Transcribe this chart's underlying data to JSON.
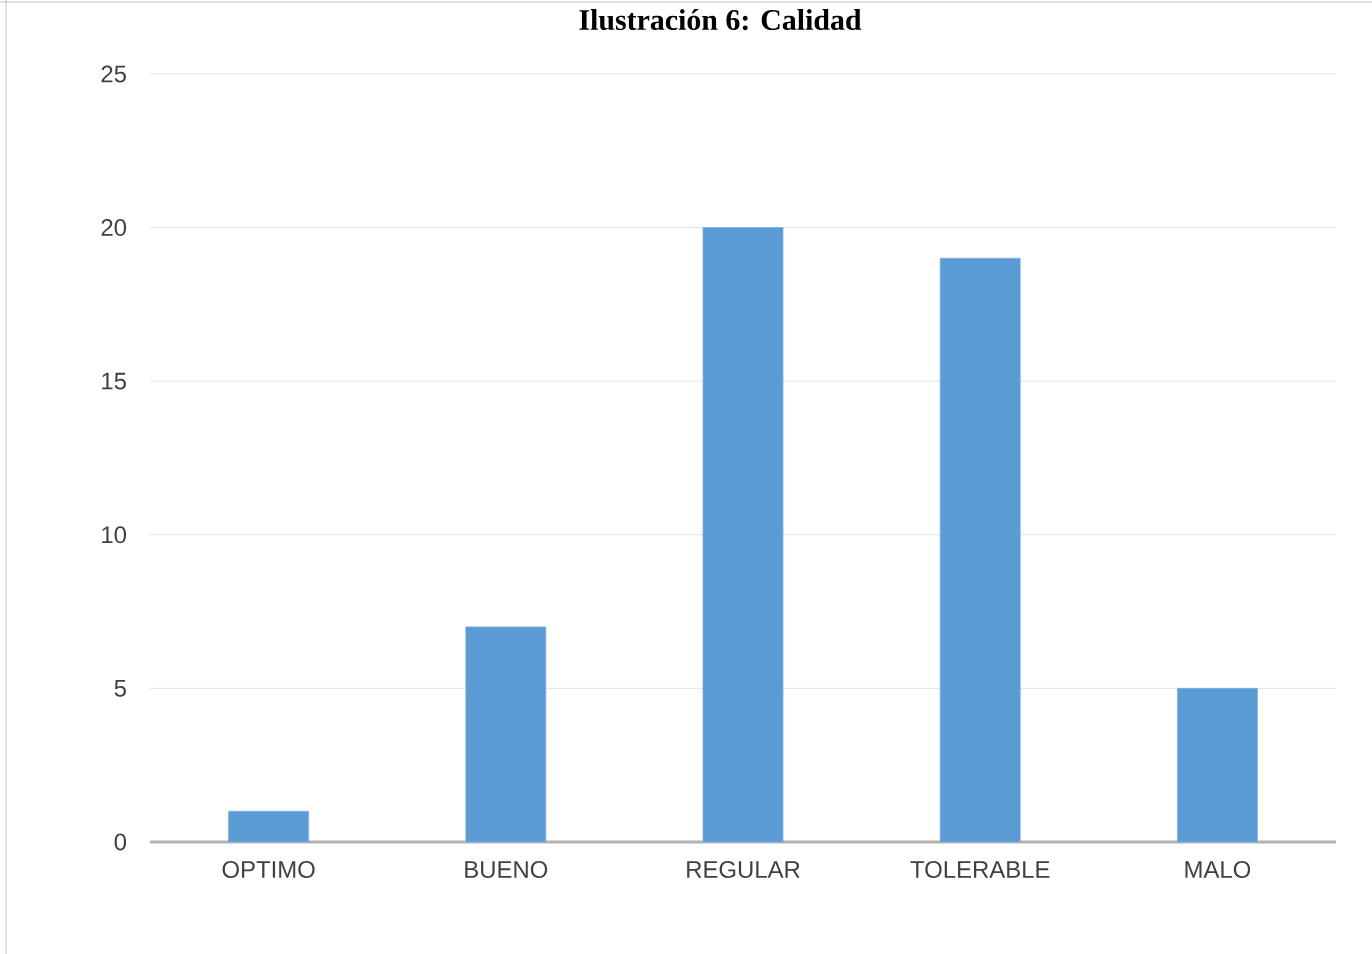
{
  "chart_data": {
    "type": "bar",
    "title": "Ilustración 6: Calidad",
    "categories": [
      "OPTIMO",
      "BUENO",
      "REGULAR",
      "TOLERABLE",
      "MALO"
    ],
    "values": [
      1,
      7,
      20,
      19,
      5
    ],
    "color": "#5b9bd5",
    "ylim": [
      0,
      25
    ],
    "yticks": [
      0,
      5,
      10,
      15,
      20,
      25
    ],
    "grid": "y"
  }
}
